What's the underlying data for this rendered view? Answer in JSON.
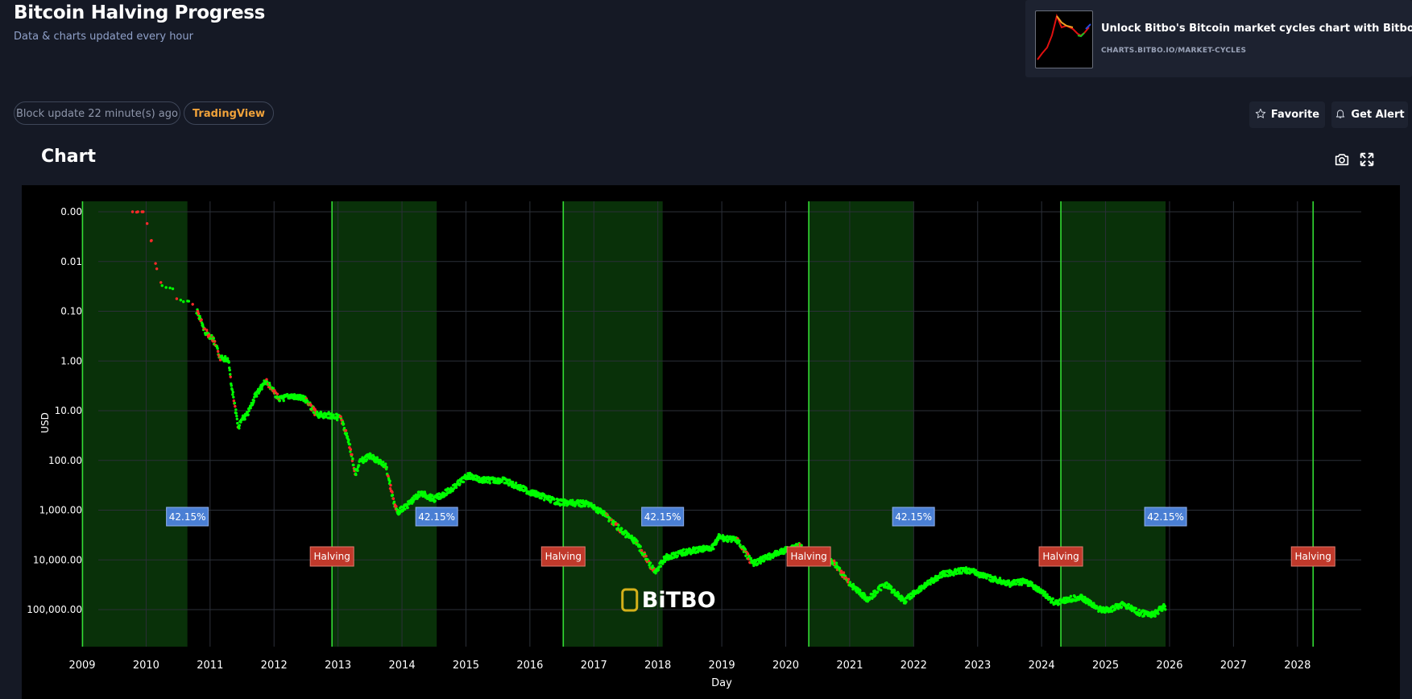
{
  "header": {
    "title": "Bitcoin Halving Progress",
    "subtitle": "Data & charts updated every hour"
  },
  "promo": {
    "title": "Unlock Bitbo's Bitcoin market cycles chart with Bitbo Pro.",
    "url": "CHARTS.BITBO.IO/MARKET-CYCLES"
  },
  "status": {
    "block_update": "Block update 22 minute(s) ago",
    "tradingview": "TradingView"
  },
  "actions": {
    "favorite": "Favorite",
    "alert": "Get Alert"
  },
  "chart_section": {
    "heading": "Chart"
  },
  "icons": [
    "star-icon",
    "bell-icon",
    "camera-icon",
    "expand-icon"
  ],
  "colors": {
    "background": "#151925",
    "plot_bg": "#000000",
    "price_up": "#00ff00",
    "price_down": "#ff2a2a",
    "halving_line": "#33dd33",
    "shade": "#0a3a0a",
    "badge_blue": "#4a7fd4",
    "badge_red": "#c0392b",
    "accent_orange": "#f0a23a"
  },
  "watermark": "BiTBO",
  "chart_data": {
    "type": "scatter",
    "title": "",
    "xlabel": "Day",
    "ylabel": "USD",
    "y_scale": "log",
    "xlim": [
      "2009-01-01",
      "2028-12-31"
    ],
    "yticks": [
      {
        "value": 0.001,
        "label": "0.00"
      },
      {
        "value": 0.01,
        "label": "0.01"
      },
      {
        "value": 0.1,
        "label": "0.10"
      },
      {
        "value": 1,
        "label": "1.00"
      },
      {
        "value": 10,
        "label": "10.00"
      },
      {
        "value": 100,
        "label": "100.00"
      },
      {
        "value": 1000,
        "label": "1,000.00"
      },
      {
        "value": 10000,
        "label": "10,000.00"
      },
      {
        "value": 100000,
        "label": "100,000.00"
      }
    ],
    "xticks": [
      "2009",
      "2010",
      "2011",
      "2012",
      "2013",
      "2014",
      "2015",
      "2016",
      "2017",
      "2018",
      "2019",
      "2020",
      "2021",
      "2022",
      "2023",
      "2024",
      "2025",
      "2026",
      "2027",
      "2028"
    ],
    "grid": true,
    "halvings": [
      {
        "date": "2009-01-03",
        "label": ""
      },
      {
        "date": "2012-11-28",
        "label": "Halving"
      },
      {
        "date": "2016-07-09",
        "label": "Halving"
      },
      {
        "date": "2020-05-11",
        "label": "Halving"
      },
      {
        "date": "2024-04-20",
        "label": "Halving"
      },
      {
        "date": "2028-03-30",
        "label": "Halving"
      }
    ],
    "shaded_periods": [
      {
        "start": "2009-01-03",
        "end": "2010-08-24",
        "label": "42.15%"
      },
      {
        "start": "2012-11-28",
        "end": "2014-07-17",
        "label": "42.15%"
      },
      {
        "start": "2016-07-09",
        "end": "2018-01-29",
        "label": "42.15%"
      },
      {
        "start": "2020-05-11",
        "end": "2021-12-31",
        "label": "42.15%"
      },
      {
        "start": "2024-04-20",
        "end": "2025-12-09",
        "label": "42.15%"
      }
    ],
    "series": [
      {
        "points": [
          [
            "2009-10-15",
            0.001
          ],
          [
            "2009-11-15",
            0.001
          ],
          [
            "2009-12-15",
            0.001
          ],
          [
            "2010-02-01",
            0.004
          ],
          [
            "2010-03-01",
            0.014
          ],
          [
            "2010-04-01",
            0.03
          ],
          [
            "2010-06-01",
            0.04
          ],
          [
            "2010-08-01",
            0.07
          ],
          [
            "2010-09-01",
            0.062
          ],
          [
            "2010-10-20",
            0.1
          ],
          [
            "2010-12-01",
            0.25
          ],
          [
            "2011-01-15",
            0.35
          ],
          [
            "2011-03-01",
            0.9
          ],
          [
            "2011-04-15",
            0.9
          ],
          [
            "2011-05-01",
            3.0
          ],
          [
            "2011-06-10",
            22.0
          ],
          [
            "2011-07-01",
            15.0
          ],
          [
            "2011-08-01",
            12.0
          ],
          [
            "2011-09-15",
            5.0
          ],
          [
            "2011-11-15",
            2.5
          ],
          [
            "2011-12-15",
            3.5
          ],
          [
            "2012-02-01",
            6.0
          ],
          [
            "2012-04-01",
            5.0
          ],
          [
            "2012-07-01",
            6.0
          ],
          [
            "2012-09-01",
            12.0
          ],
          [
            "2012-11-28",
            12.5
          ],
          [
            "2013-01-15",
            14.0
          ],
          [
            "2013-03-01",
            40.0
          ],
          [
            "2013-04-10",
            200.0
          ],
          [
            "2013-05-01",
            110.0
          ],
          [
            "2013-07-01",
            80.0
          ],
          [
            "2013-10-01",
            130.0
          ],
          [
            "2013-11-20",
            800.0
          ],
          [
            "2013-12-05",
            1100.0
          ],
          [
            "2014-02-01",
            800.0
          ],
          [
            "2014-04-15",
            450.0
          ],
          [
            "2014-07-01",
            600.0
          ],
          [
            "2014-10-01",
            400.0
          ],
          [
            "2015-01-15",
            200.0
          ],
          [
            "2015-04-01",
            250.0
          ],
          [
            "2015-08-01",
            250.0
          ],
          [
            "2016-01-01",
            430.0
          ],
          [
            "2016-06-15",
            700.0
          ],
          [
            "2016-12-01",
            750.0
          ],
          [
            "2017-03-01",
            1200.0
          ],
          [
            "2017-06-01",
            2500.0
          ],
          [
            "2017-09-01",
            4500.0
          ],
          [
            "2017-12-15",
            18000.0
          ],
          [
            "2018-02-15",
            9000.0
          ],
          [
            "2018-06-01",
            7000.0
          ],
          [
            "2018-11-15",
            5500.0
          ],
          [
            "2018-12-15",
            3500.0
          ],
          [
            "2019-04-01",
            4100.0
          ],
          [
            "2019-06-25",
            12000.0
          ],
          [
            "2019-10-01",
            8500.0
          ],
          [
            "2020-03-12",
            5000.0
          ],
          [
            "2020-06-01",
            9500.0
          ],
          [
            "2020-10-01",
            11000.0
          ],
          [
            "2021-01-01",
            30000.0
          ],
          [
            "2021-04-15",
            63000.0
          ],
          [
            "2021-07-20",
            30000.0
          ],
          [
            "2021-11-10",
            67000.0
          ],
          [
            "2022-01-15",
            43000.0
          ],
          [
            "2022-06-18",
            19000.0
          ],
          [
            "2022-11-10",
            16000.0
          ],
          [
            "2023-03-01",
            23000.0
          ],
          [
            "2023-07-01",
            30000.0
          ],
          [
            "2023-10-01",
            27000.0
          ],
          [
            "2024-01-10",
            46000.0
          ],
          [
            "2024-03-14",
            73000.0
          ],
          [
            "2024-08-05",
            55000.0
          ],
          [
            "2024-11-20",
            95000.0
          ],
          [
            "2025-01-20",
            105000.0
          ],
          [
            "2025-04-08",
            77000.0
          ],
          [
            "2025-07-15",
            118000.0
          ],
          [
            "2025-10-06",
            124000.0
          ],
          [
            "2025-11-25",
            88000.0
          ],
          [
            "2025-12-10",
            90000.0
          ]
        ]
      }
    ]
  }
}
